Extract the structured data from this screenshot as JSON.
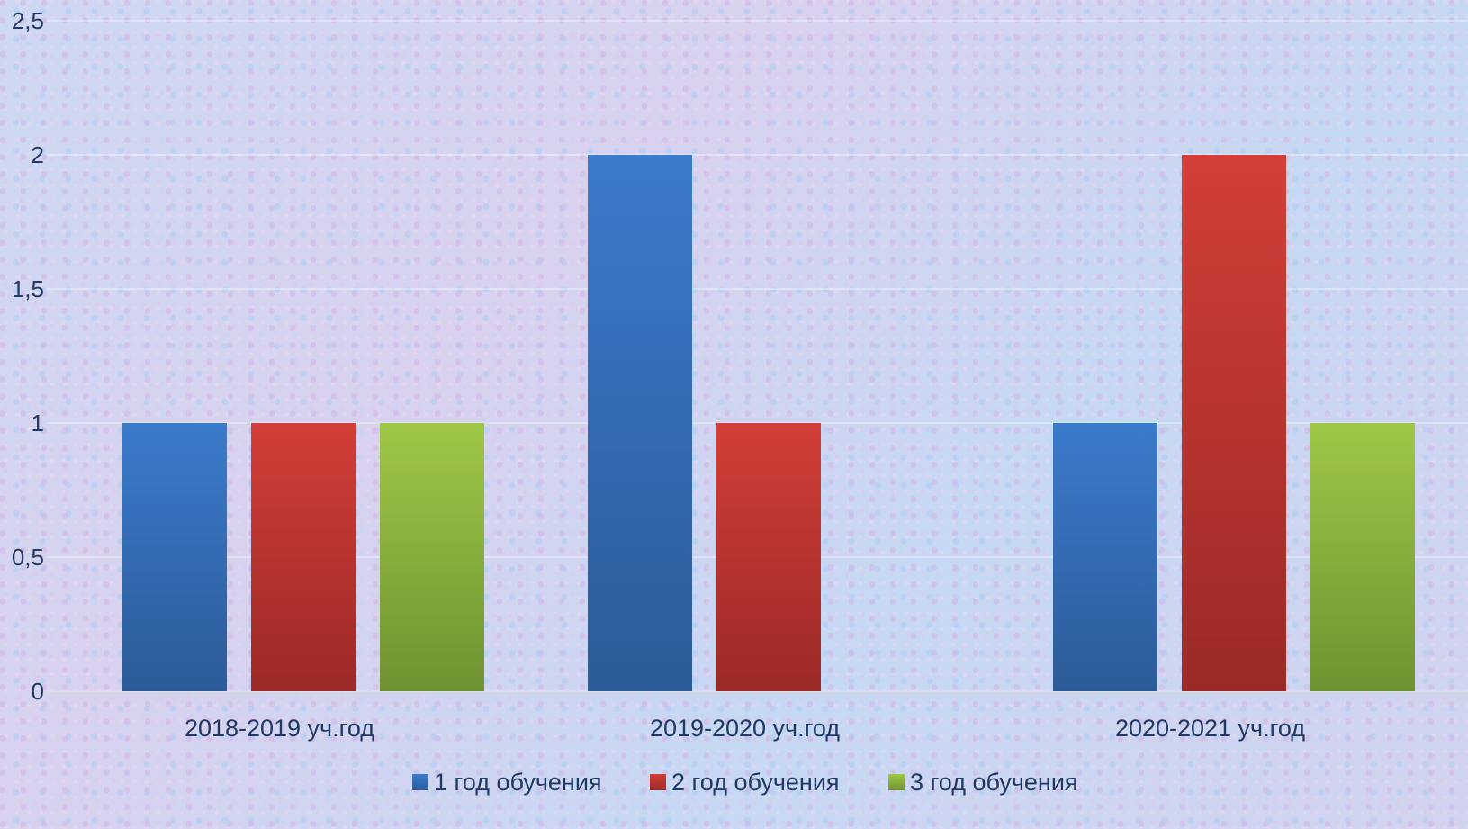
{
  "chart_data": {
    "type": "bar",
    "categories": [
      "2018-2019 уч.год",
      "2019-2020 уч.год",
      "2020-2021 уч.год"
    ],
    "series": [
      {
        "name": "1 год обучения",
        "values": [
          1,
          2,
          1
        ],
        "color": "#3a78c9"
      },
      {
        "name": "2 год обучения",
        "values": [
          1,
          1,
          2
        ],
        "color": "#cc3b35"
      },
      {
        "name": "3 год обучения",
        "values": [
          1,
          0,
          1
        ],
        "color": "#9bc142"
      }
    ],
    "yticks": [
      "0",
      "0,5",
      "1",
      "1,5",
      "2",
      "2,5"
    ],
    "ylim": [
      0,
      2.5
    ],
    "grid": true,
    "legend": "bottom"
  }
}
